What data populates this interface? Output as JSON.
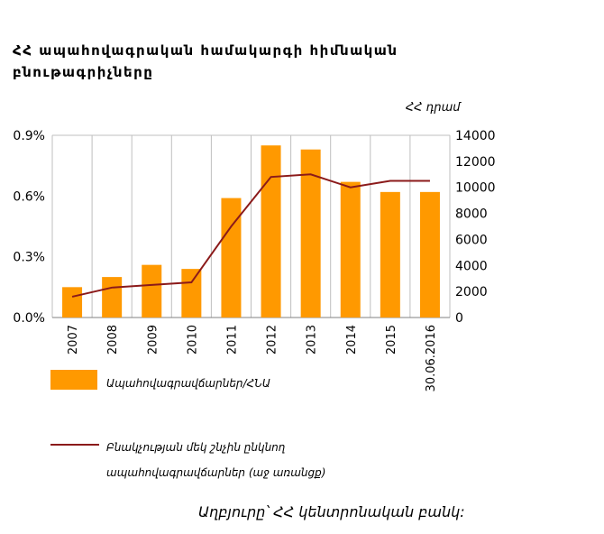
{
  "title": "ՀՀ ապահովագրական համակարգի հիմնական բնութագրիչները",
  "right_axis_unit": "ՀՀ դրամ",
  "source": "Աղբյուրը՝ ՀՀ կենտրոնական բանկ:",
  "colors": {
    "bar": "#FF9900",
    "line": "#8B1A1A",
    "grid": "#BFBFBF"
  },
  "chart_data": {
    "type": "bar+line",
    "categories": [
      "2007",
      "2008",
      "2009",
      "2010",
      "2011",
      "2012",
      "2013",
      "2014",
      "2015",
      "30.06.2016"
    ],
    "series": [
      {
        "name": "Ապահովագրավճարներ/ՀՆԱ",
        "type": "bar",
        "axis": "left",
        "values": [
          0.15,
          0.2,
          0.26,
          0.24,
          0.59,
          0.85,
          0.83,
          0.67,
          0.62,
          0.62
        ]
      },
      {
        "name": "Բնակչության մեկ շնչին ընկնող ապահովագրավճարներ (աջ առանցք)",
        "type": "line",
        "axis": "right",
        "values": [
          1600,
          2300,
          2500,
          2700,
          7000,
          10800,
          11000,
          10000,
          10500,
          10500
        ]
      }
    ],
    "left_axis": {
      "min": 0,
      "max": 0.9,
      "ticks": [
        "0.0%",
        "0.3%",
        "0.6%",
        "0.9%"
      ]
    },
    "right_axis": {
      "min": 0,
      "max": 14000,
      "ticks": [
        "0",
        "2000",
        "4000",
        "6000",
        "8000",
        "10000",
        "12000",
        "14000"
      ]
    },
    "grid": "vertical",
    "legend_position": "bottom"
  }
}
